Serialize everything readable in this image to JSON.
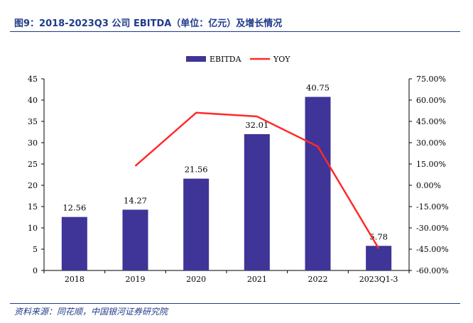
{
  "figure": {
    "title": "图9：2018-2023Q3 公司 EBITDA（单位：亿元）及增长情况",
    "source": "资料来源：同花顺，中国银河证券研究院"
  },
  "colors": {
    "bar": "#3f3498",
    "line": "#ff2a2a",
    "rule": "#1f3b8a"
  },
  "chart_data": {
    "type": "bar",
    "categories": [
      "2018",
      "2019",
      "2020",
      "2021",
      "2022",
      "2023Q1-3"
    ],
    "series": [
      {
        "name": "EBITDA",
        "type": "bar",
        "axis": "left",
        "values": [
          12.56,
          14.27,
          21.56,
          32.01,
          40.75,
          5.78
        ],
        "labels": [
          "12.56",
          "14.27",
          "21.56",
          "32.01",
          "40.75",
          "5.78"
        ]
      },
      {
        "name": "YOY",
        "type": "line",
        "axis": "right",
        "values": [
          null,
          13.6,
          51.1,
          48.5,
          27.3,
          -44.5
        ]
      }
    ],
    "y_left": {
      "ylim": [
        0,
        45
      ],
      "ticks": [
        0,
        5,
        10,
        15,
        20,
        25,
        30,
        35,
        40,
        45
      ],
      "tick_labels": [
        "0",
        "5",
        "10",
        "15",
        "20",
        "25",
        "30",
        "35",
        "40",
        "45"
      ]
    },
    "y_right": {
      "ylim": [
        -60,
        75
      ],
      "ticks": [
        -60,
        -45,
        -30,
        -15,
        0,
        15,
        30,
        45,
        60,
        75
      ],
      "tick_labels": [
        "-60.00%",
        "-45.00%",
        "-30.00%",
        "-15.00%",
        "0.00%",
        "15.00%",
        "30.00%",
        "45.00%",
        "60.00%",
        "75.00%"
      ]
    },
    "legend": {
      "position": "top-center",
      "items": [
        "EBITDA",
        "YOY"
      ]
    },
    "grid": false
  }
}
